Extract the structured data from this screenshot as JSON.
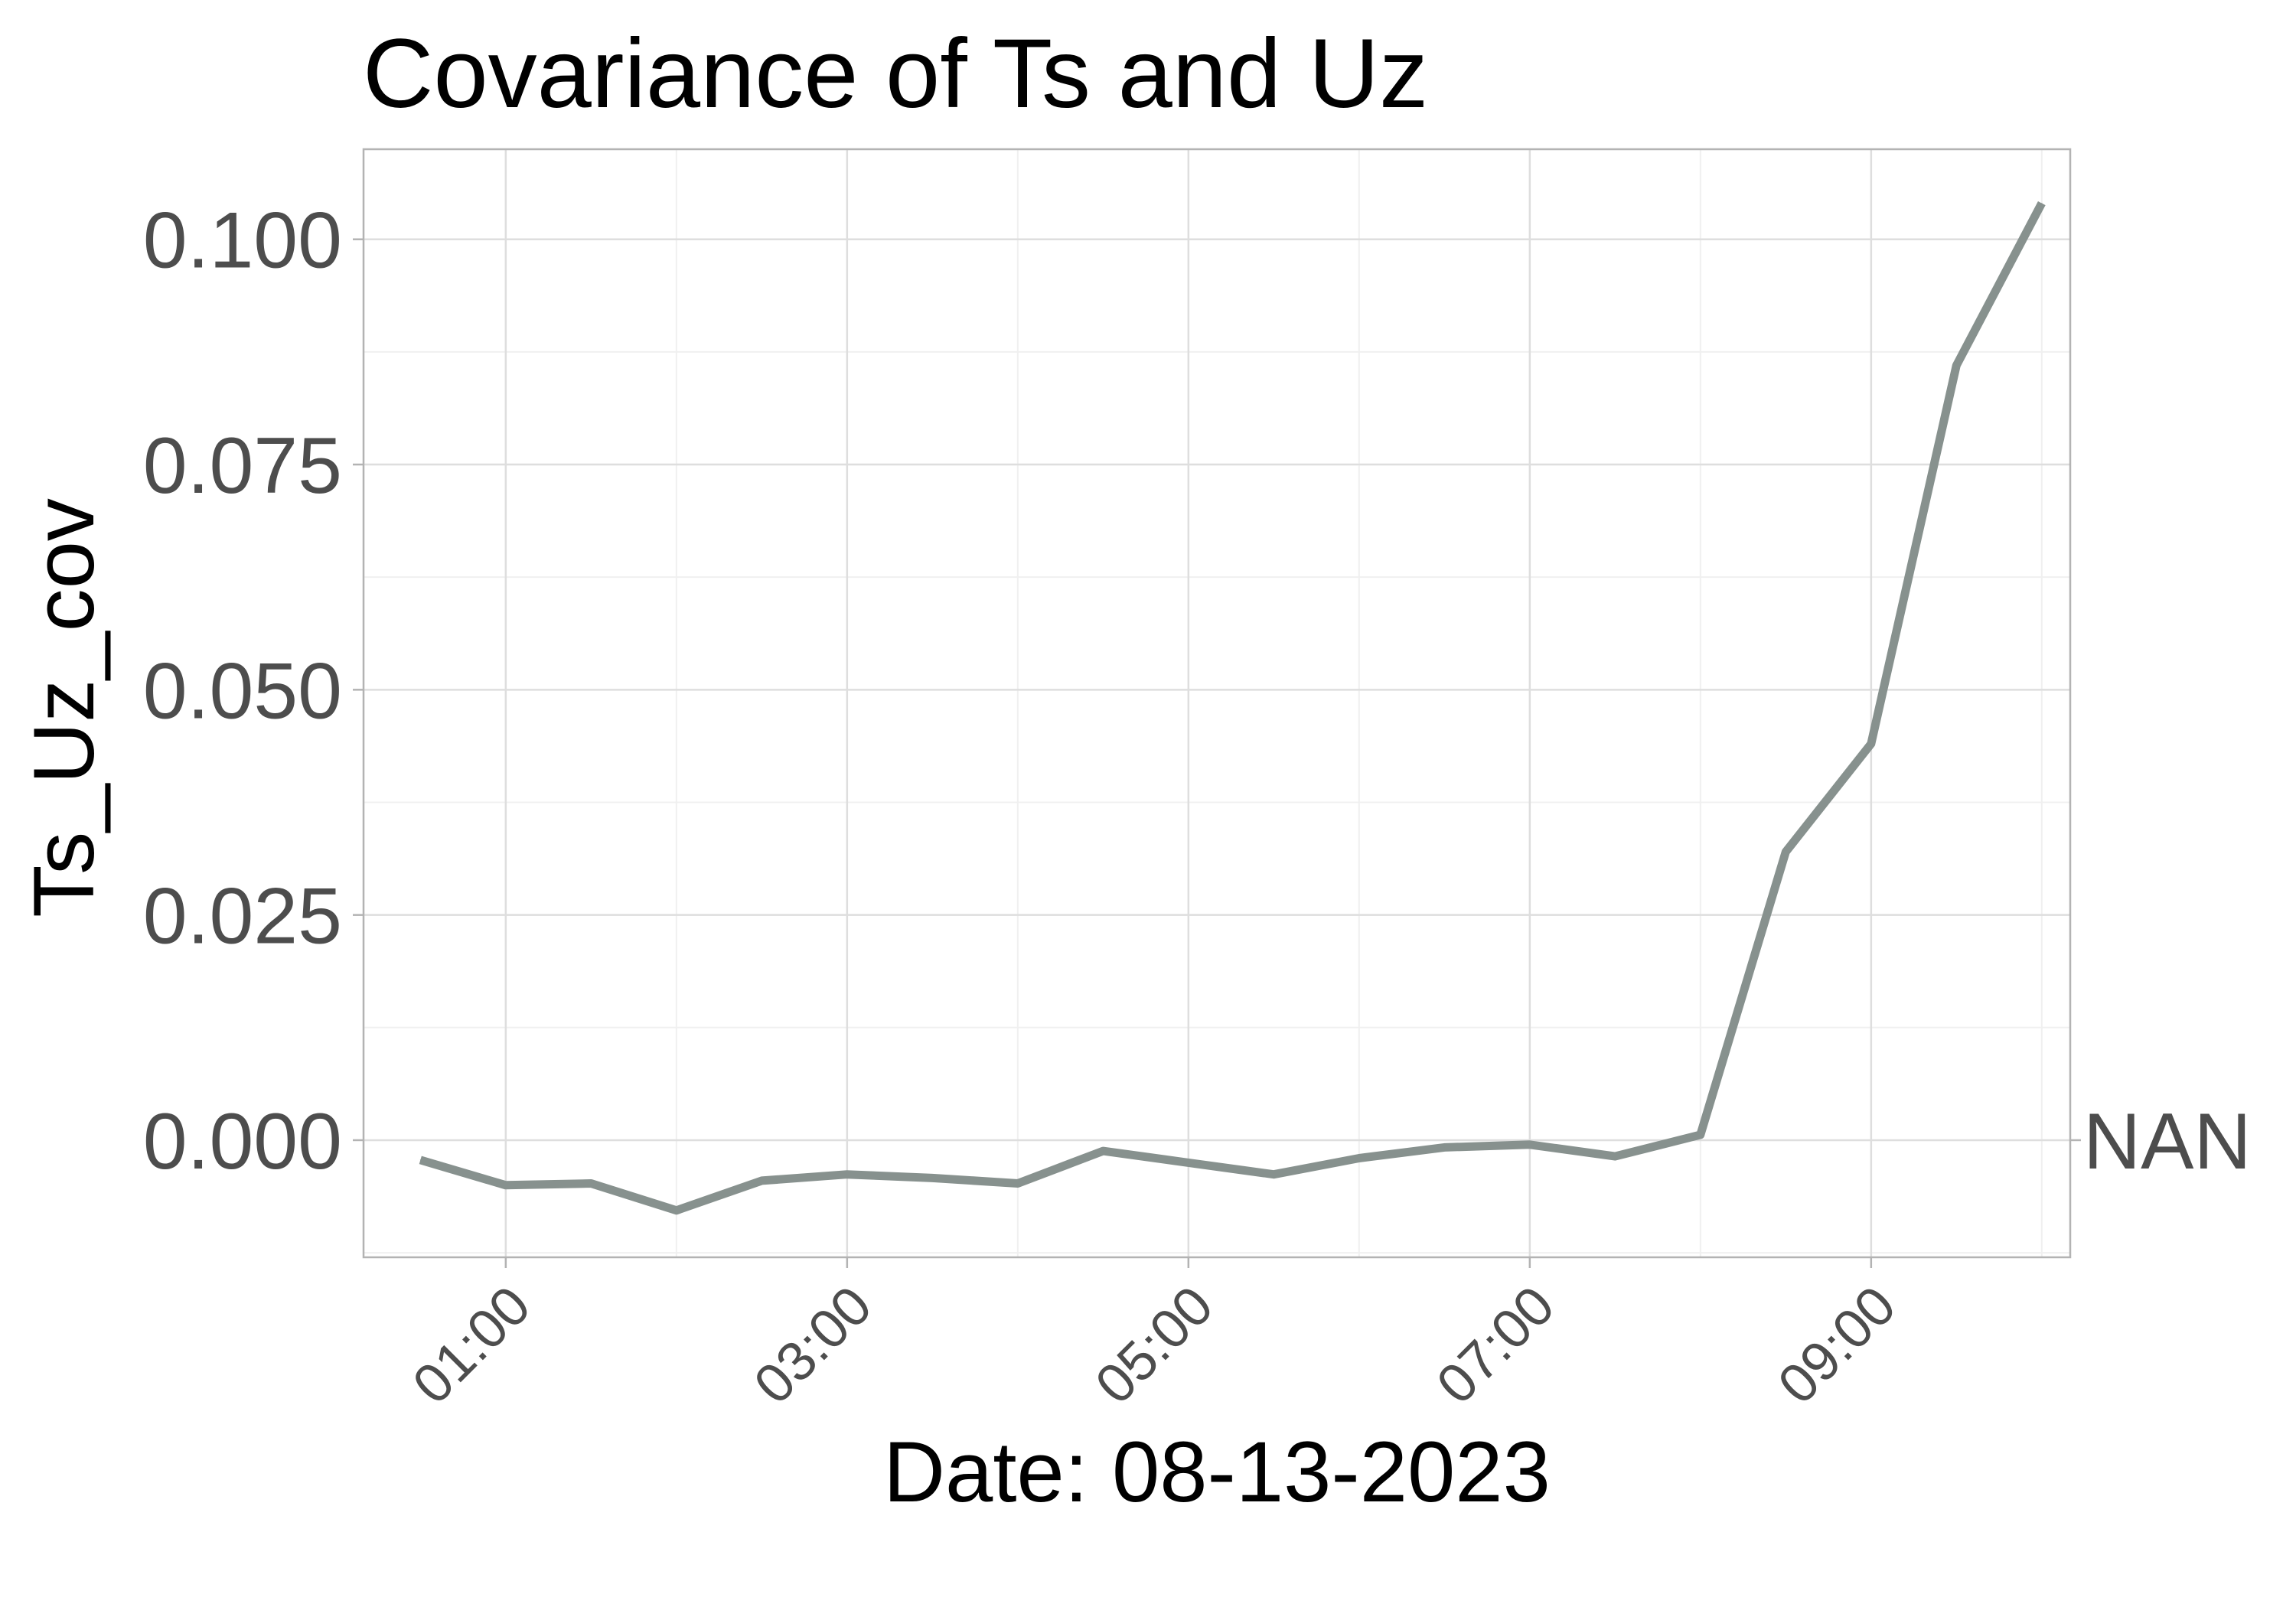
{
  "chart_data": {
    "type": "line",
    "title": "Covariance of Ts and Uz",
    "xlabel": "Date: 08-13-2023",
    "ylabel": "Ts_Uz_cov",
    "x_tick_labels": [
      "01:00",
      "03:00",
      "05:00",
      "07:00",
      "09:00"
    ],
    "y_tick_labels": [
      "0.000",
      "0.025",
      "0.050",
      "0.075",
      "0.100"
    ],
    "ylim": [
      -0.013,
      0.11
    ],
    "grid": true,
    "right_annotation": "NAN",
    "series": [
      {
        "color": "#87918e",
        "x": [
          "00:30",
          "01:00",
          "01:30",
          "02:00",
          "02:30",
          "03:00",
          "03:30",
          "04:00",
          "04:30",
          "05:00",
          "05:30",
          "06:00",
          "06:30",
          "07:00",
          "07:30",
          "08:00",
          "08:30",
          "09:00",
          "09:30",
          "10:00"
        ],
        "values": [
          -0.0022,
          -0.005,
          -0.0048,
          -0.0078,
          -0.0045,
          -0.0038,
          -0.0042,
          -0.0048,
          -0.0012,
          -0.0025,
          -0.0038,
          -0.002,
          -0.0008,
          -0.0005,
          -0.0018,
          0.0006,
          0.032,
          0.044,
          0.086,
          0.104
        ]
      }
    ]
  }
}
